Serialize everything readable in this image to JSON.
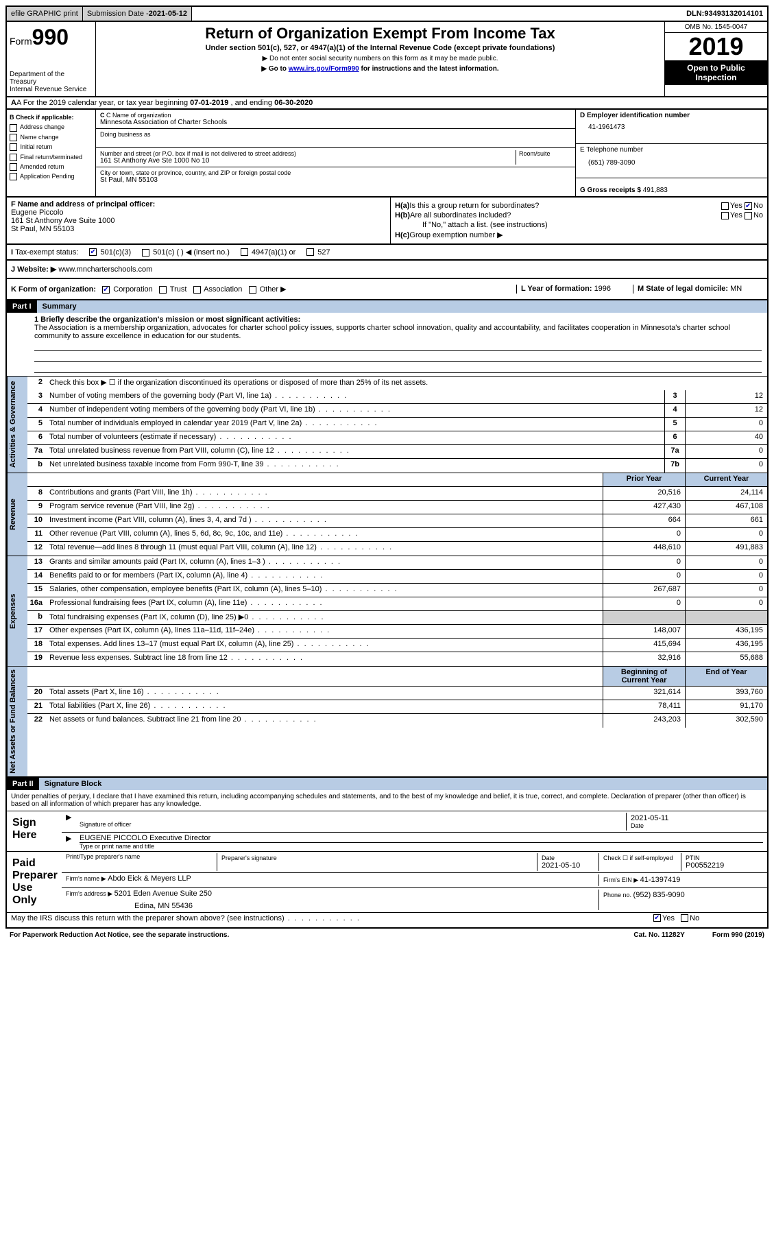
{
  "topbar": {
    "efile": "efile GRAPHIC print",
    "subdate_label": "Submission Date - ",
    "subdate": "2021-05-12",
    "dln_label": "DLN: ",
    "dln": "93493132014101"
  },
  "header": {
    "form_word": "Form",
    "form_num": "990",
    "dept1": "Department of the Treasury",
    "dept2": "Internal Revenue Service",
    "title": "Return of Organization Exempt From Income Tax",
    "subtitle": "Under section 501(c), 527, or 4947(a)(1) of the Internal Revenue Code (except private foundations)",
    "note1": "▶ Do not enter social security numbers on this form as it may be made public.",
    "note2_pre": "▶ Go to ",
    "note2_link": "www.irs.gov/Form990",
    "note2_post": " for instructions and the latest information.",
    "omb": "OMB No. 1545-0047",
    "year": "2019",
    "inspect1": "Open to Public",
    "inspect2": "Inspection"
  },
  "rowA": {
    "text_pre": "A For the 2019 calendar year, or tax year beginning ",
    "begin": "07-01-2019",
    "mid": " , and ending ",
    "end": "06-30-2020"
  },
  "colB": {
    "hdr": "B Check if applicable:",
    "opts": [
      "Address change",
      "Name change",
      "Initial return",
      "Final return/terminated",
      "Amended return",
      "Application Pending"
    ]
  },
  "colC": {
    "name_lbl": "C Name of organization",
    "name": "Minnesota Association of Charter Schools",
    "dba_lbl": "Doing business as",
    "addr_lbl": "Number and street (or P.O. box if mail is not delivered to street address)",
    "room_lbl": "Room/suite",
    "addr": "161 St Anthony Ave Ste 1000 No 10",
    "city_lbl": "City or town, state or province, country, and ZIP or foreign postal code",
    "city": "St Paul, MN  55103"
  },
  "colD": {
    "ein_lbl": "D Employer identification number",
    "ein": "41-1961473",
    "tel_lbl": "E Telephone number",
    "tel": "(651) 789-3090",
    "gross_lbl": "G Gross receipts $ ",
    "gross": "491,883"
  },
  "colF": {
    "lbl": "F  Name and address of principal officer:",
    "name": "Eugene Piccolo",
    "addr1": "161 St Anthony Ave Suite 1000",
    "addr2": "St Paul, MN  55103"
  },
  "colH": {
    "a_lbl": "H(a)",
    "a_txt": " Is this a group return for subordinates?",
    "b_lbl": "H(b)",
    "b_txt": " Are all subordinates included?",
    "b_note": "If \"No,\" attach a list. (see instructions)",
    "c_lbl": "H(c)",
    "c_txt": " Group exemption number ▶",
    "yes": "Yes",
    "no": "No"
  },
  "rowI": {
    "lbl": "Tax-exempt status:",
    "o1": "501(c)(3)",
    "o2": "501(c) (  ) ◀ (insert no.)",
    "o3": "4947(a)(1) or",
    "o4": "527"
  },
  "rowJ": {
    "lbl": "J  Website: ▶ ",
    "url": "www.mncharterschools.com"
  },
  "rowK": {
    "lbl": "K Form of organization:",
    "o1": "Corporation",
    "o2": "Trust",
    "o3": "Association",
    "o4": "Other ▶",
    "l_lbl": "L Year of formation: ",
    "l_val": "1996",
    "m_lbl": "M State of legal domicile: ",
    "m_val": "MN"
  },
  "part1": {
    "hdr": "Part I",
    "title": "Summary",
    "l1_lbl": "1  Briefly describe the organization's mission or most significant activities:",
    "l1_txt": "The Association is a membership organization, advocates for charter school policy issues, supports charter school innovation, quality and accountability, and facilitates cooperation in Minnesota's charter school community to assure excellence in education for our students.",
    "l2": "Check this box ▶ ☐  if the organization discontinued its operations or disposed of more than 25% of its net assets.",
    "sections": [
      {
        "vlabel": "Activities & Governance",
        "rows": [
          {
            "n": "3",
            "d": "Number of voting members of the governing body (Part VI, line 1a)",
            "box": "3",
            "cur": "12"
          },
          {
            "n": "4",
            "d": "Number of independent voting members of the governing body (Part VI, line 1b)",
            "box": "4",
            "cur": "12"
          },
          {
            "n": "5",
            "d": "Total number of individuals employed in calendar year 2019 (Part V, line 2a)",
            "box": "5",
            "cur": "0"
          },
          {
            "n": "6",
            "d": "Total number of volunteers (estimate if necessary)",
            "box": "6",
            "cur": "40"
          },
          {
            "n": "7a",
            "d": "Total unrelated business revenue from Part VIII, column (C), line 12",
            "box": "7a",
            "cur": "0"
          },
          {
            "n": "b",
            "d": "Net unrelated business taxable income from Form 990-T, line 39",
            "box": "7b",
            "cur": "0"
          }
        ]
      },
      {
        "vlabel": "Revenue",
        "hdr_prior": "Prior Year",
        "hdr_cur": "Current Year",
        "rows": [
          {
            "n": "8",
            "d": "Contributions and grants (Part VIII, line 1h)",
            "prior": "20,516",
            "cur": "24,114"
          },
          {
            "n": "9",
            "d": "Program service revenue (Part VIII, line 2g)",
            "prior": "427,430",
            "cur": "467,108"
          },
          {
            "n": "10",
            "d": "Investment income (Part VIII, column (A), lines 3, 4, and 7d )",
            "prior": "664",
            "cur": "661"
          },
          {
            "n": "11",
            "d": "Other revenue (Part VIII, column (A), lines 5, 6d, 8c, 9c, 10c, and 11e)",
            "prior": "0",
            "cur": "0"
          },
          {
            "n": "12",
            "d": "Total revenue—add lines 8 through 11 (must equal Part VIII, column (A), line 12)",
            "prior": "448,610",
            "cur": "491,883"
          }
        ]
      },
      {
        "vlabel": "Expenses",
        "rows": [
          {
            "n": "13",
            "d": "Grants and similar amounts paid (Part IX, column (A), lines 1–3 )",
            "prior": "0",
            "cur": "0"
          },
          {
            "n": "14",
            "d": "Benefits paid to or for members (Part IX, column (A), line 4)",
            "prior": "0",
            "cur": "0"
          },
          {
            "n": "15",
            "d": "Salaries, other compensation, employee benefits (Part IX, column (A), lines 5–10)",
            "prior": "267,687",
            "cur": "0"
          },
          {
            "n": "16a",
            "d": "Professional fundraising fees (Part IX, column (A), line 11e)",
            "prior": "0",
            "cur": "0"
          },
          {
            "n": "b",
            "d": "Total fundraising expenses (Part IX, column (D), line 25) ▶0",
            "prior": "GRAY",
            "cur": "GRAY"
          },
          {
            "n": "17",
            "d": "Other expenses (Part IX, column (A), lines 11a–11d, 11f–24e)",
            "prior": "148,007",
            "cur": "436,195"
          },
          {
            "n": "18",
            "d": "Total expenses. Add lines 13–17 (must equal Part IX, column (A), line 25)",
            "prior": "415,694",
            "cur": "436,195"
          },
          {
            "n": "19",
            "d": "Revenue less expenses. Subtract line 18 from line 12",
            "prior": "32,916",
            "cur": "55,688"
          }
        ]
      },
      {
        "vlabel": "Net Assets or Fund Balances",
        "hdr_prior": "Beginning of Current Year",
        "hdr_cur": "End of Year",
        "rows": [
          {
            "n": "20",
            "d": "Total assets (Part X, line 16)",
            "prior": "321,614",
            "cur": "393,760"
          },
          {
            "n": "21",
            "d": "Total liabilities (Part X, line 26)",
            "prior": "78,411",
            "cur": "91,170"
          },
          {
            "n": "22",
            "d": "Net assets or fund balances. Subtract line 21 from line 20",
            "prior": "243,203",
            "cur": "302,590"
          }
        ]
      }
    ]
  },
  "part2": {
    "hdr": "Part II",
    "title": "Signature Block",
    "intro": "Under penalties of perjury, I declare that I have examined this return, including accompanying schedules and statements, and to the best of my knowledge and belief, it is true, correct, and complete. Declaration of preparer (other than officer) is based on all information of which preparer has any knowledge.",
    "sign_here": "Sign Here",
    "sig_officer": "Signature of officer",
    "sig_date_lbl": "Date",
    "sig_date": "2021-05-11",
    "officer_name": "EUGENE PICCOLO Executive Director",
    "officer_sub": "Type or print name and title",
    "paid": "Paid Preparer Use Only",
    "prep_name_lbl": "Print/Type preparer's name",
    "prep_sig_lbl": "Preparer's signature",
    "prep_date_lbl": "Date",
    "prep_date": "2021-05-10",
    "prep_check": "Check ☐ if self-employed",
    "ptin_lbl": "PTIN",
    "ptin": "P00552219",
    "firm_name_lbl": "Firm's name    ▶ ",
    "firm_name": "Abdo Eick & Meyers LLP",
    "firm_ein_lbl": "Firm's EIN ▶ ",
    "firm_ein": "41-1397419",
    "firm_addr_lbl": "Firm's address ▶ ",
    "firm_addr1": "5201 Eden Avenue Suite 250",
    "firm_addr2": "Edina, MN  55436",
    "firm_phone_lbl": "Phone no. ",
    "firm_phone": "(952) 835-9090",
    "discuss": "May the IRS discuss this return with the preparer shown above? (see instructions)",
    "yes": "Yes",
    "no": "No"
  },
  "footer": {
    "l": "For Paperwork Reduction Act Notice, see the separate instructions.",
    "m": "Cat. No. 11282Y",
    "r": "Form 990 (2019)"
  }
}
